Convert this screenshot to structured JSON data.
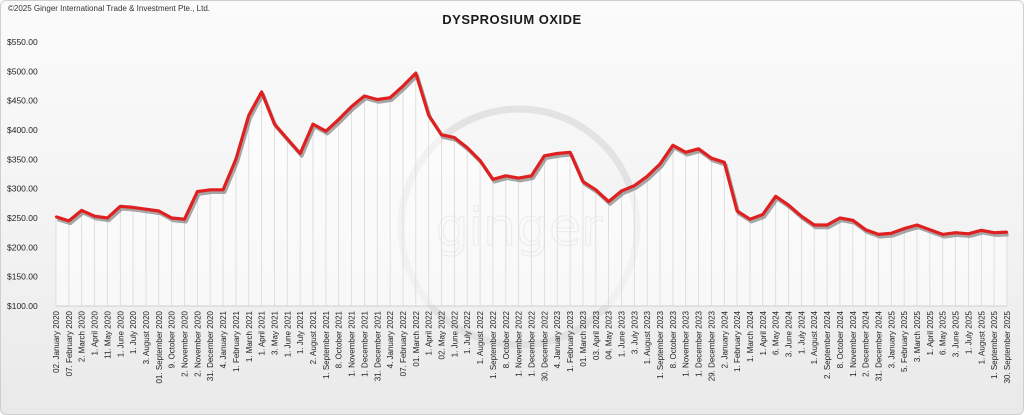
{
  "copyright": "©2025 Ginger International Trade & Investment Pte., Ltd.",
  "watermark": "ginger",
  "chart_data": {
    "type": "area",
    "title": "DYSPROSIUM OXIDE",
    "xlabel": "",
    "ylabel": "",
    "ylim": [
      100,
      550
    ],
    "y_ticks": [
      "$100.00",
      "$150.00",
      "$200.00",
      "$250.00",
      "$300.00",
      "$350.00",
      "$400.00",
      "$450.00",
      "$500.00",
      "$550.00"
    ],
    "x_tick_labels": [
      "02. January 2020",
      "07. February 2020",
      "2. March 2020",
      "1. April 2020",
      "11. May 2020",
      "1. June 2020",
      "1. July 2020",
      "3. August 2020",
      "01. September 2020",
      "9. October 2020",
      "2. November 2020",
      "2. November 2020",
      "31. December 2020",
      "4. January 2021",
      "1. February 2021",
      "1. March 2021",
      "1. April 2021",
      "3. May 2021",
      "1. June 2021",
      "1. July 2021",
      "2. August 2021",
      "1. September 2021",
      "8. October 2021",
      "1. November 2021",
      "1. December 2021",
      "31. December 2021",
      "4. January 2022",
      "07. February 2022",
      "01. March 2022",
      "1. April 2022",
      "02. May 2022",
      "1. June 2022",
      "1. July 2022",
      "1. August 2022",
      "1. September 2022",
      "8. October 2022",
      "1. November 2022",
      "1. December 2022",
      "30. December 2022",
      "4. January 2023",
      "1. February 2023",
      "01. March 2023",
      "03. April 2023",
      "04. May 2023",
      "1. June 2023",
      "3. July 2023",
      "1. August 2023",
      "1. September 2023",
      "8. October 2023",
      "1. November 2023",
      "1. December 2023",
      "29. December 2023",
      "2. January 2024",
      "1. February 2024",
      "1. March 2024",
      "1. April 2024",
      "6. May 2024",
      "3. June 2024",
      "1. July 2024",
      "1. August 2024",
      "2. September 2024",
      "8. October 2024",
      "1. November 2024",
      "2. December 2024",
      "31. December 2024",
      "3. January 2025",
      "5. February 2025",
      "3. March 2025",
      "1. April 2025",
      "6. May 2025",
      "3. June 2025",
      "1. July 2025",
      "1. August 2025",
      "1. September 2025",
      "30. September 2025"
    ],
    "series": [
      {
        "values": [
          252,
          245,
          263,
          253,
          250,
          270,
          268,
          265,
          262,
          250,
          248,
          295,
          298,
          298,
          350,
          425,
          465,
          410,
          385,
          360,
          410,
          398,
          418,
          440,
          458,
          452,
          455,
          475,
          497,
          425,
          392,
          387,
          370,
          348,
          316,
          322,
          318,
          322,
          356,
          360,
          362,
          312,
          298,
          278,
          296,
          305,
          321,
          342,
          374,
          362,
          368,
          352,
          345,
          262,
          248,
          256,
          287,
          272,
          253,
          238,
          238,
          250,
          246,
          230,
          222,
          224,
          232,
          238,
          230,
          222,
          225,
          223,
          229,
          225,
          226
        ]
      }
    ],
    "grid": false,
    "legend": "none",
    "colors": {
      "line": "#e02020",
      "shadow": "#6e6e6e",
      "drop_lines": "#d9d9d9",
      "fill": "#ffffff"
    }
  }
}
